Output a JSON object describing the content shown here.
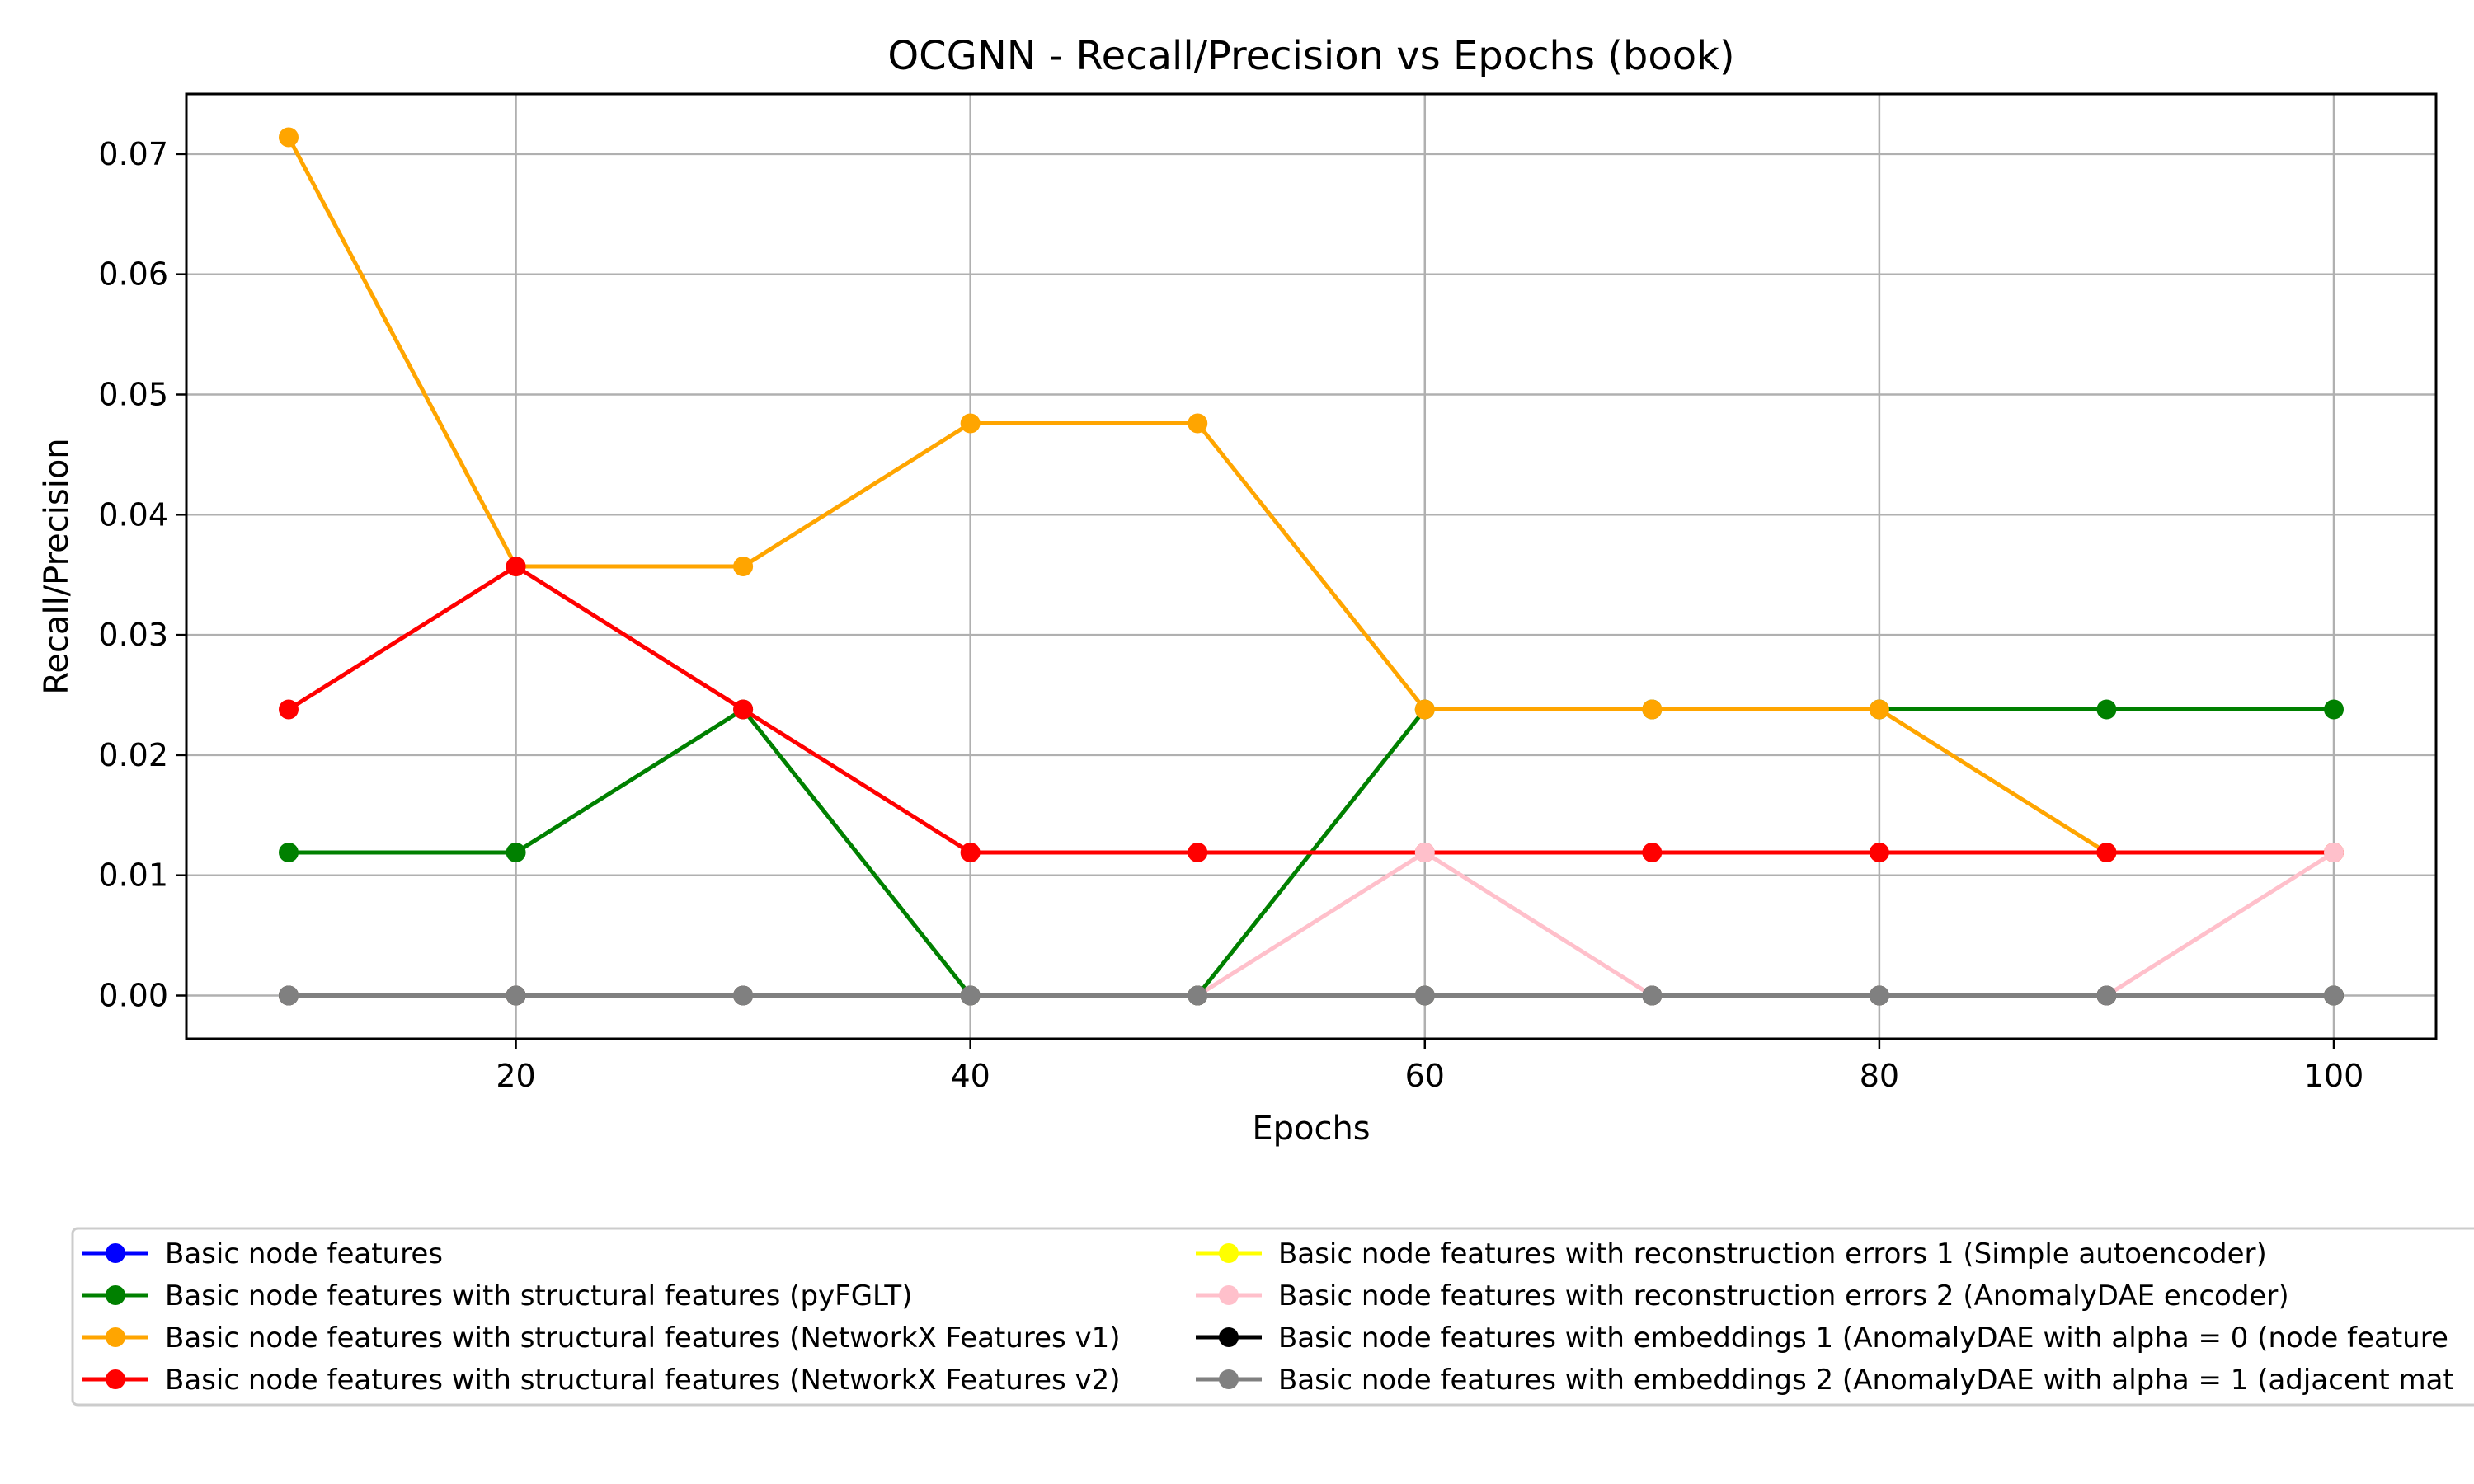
{
  "chart_data": {
    "type": "line",
    "title": "OCGNN - Recall/Precision vs Epochs (book)",
    "xlabel": "Epochs",
    "ylabel": "Recall/Precision",
    "xlim": [
      5.5,
      104.5
    ],
    "ylim": [
      -0.0036,
      0.075
    ],
    "x_ticks": [
      20,
      40,
      60,
      80,
      100
    ],
    "y_ticks": [
      0.0,
      0.01,
      0.02,
      0.03,
      0.04,
      0.05,
      0.06,
      0.07
    ],
    "grid": true,
    "legend_position": "below",
    "x": [
      10,
      20,
      30,
      40,
      50,
      60,
      70,
      80,
      90,
      100
    ],
    "series": [
      {
        "name": "Basic node features",
        "color": "#0000ff",
        "values": [
          0,
          0,
          0,
          0,
          0,
          0,
          0,
          0,
          0,
          0
        ]
      },
      {
        "name": "Basic node features with structural features (pyFGLT)",
        "color": "#008000",
        "values": [
          0.0119,
          0.0119,
          0.0238,
          0,
          0,
          0.0238,
          0.0238,
          0.0238,
          0.0238,
          0.0238
        ]
      },
      {
        "name": "Basic node features with structural features (NetworkX Features v1)",
        "color": "#ffa500",
        "values": [
          0.0714,
          0.0357,
          0.0357,
          0.0476,
          0.0476,
          0.0238,
          0.0238,
          0.0238,
          0.0119,
          0.0119
        ]
      },
      {
        "name": "Basic node features with structural features (NetworkX Features v2)",
        "color": "#ff0000",
        "values": [
          0.0238,
          0.0357,
          0.0238,
          0.0119,
          0.0119,
          0.0119,
          0.0119,
          0.0119,
          0.0119,
          0.0119
        ]
      },
      {
        "name": "Basic node features with reconstruction errors 1 (Simple autoencoder)",
        "color": "#ffff00",
        "values": [
          0,
          0,
          0,
          0,
          0,
          0,
          0,
          0,
          0,
          0
        ]
      },
      {
        "name": "Basic node features with reconstruction errors 2 (AnomalyDAE encoder)",
        "color": "#ffc0cb",
        "values": [
          0,
          0,
          0,
          0,
          0,
          0.0119,
          0,
          0,
          0,
          0.0119
        ]
      },
      {
        "name": "Basic node features with embeddings 1 (AnomalyDAE with alpha = 0 (node feature",
        "color": "#000000",
        "values": [
          0,
          0,
          0,
          0,
          0,
          0,
          0,
          0,
          0,
          0
        ]
      },
      {
        "name": "Basic node features with embeddings 2 (AnomalyDAE with alpha = 1 (adjacent mat",
        "color": "#808080",
        "values": [
          0,
          0,
          0,
          0,
          0,
          0,
          0,
          0,
          0,
          0
        ]
      }
    ]
  }
}
